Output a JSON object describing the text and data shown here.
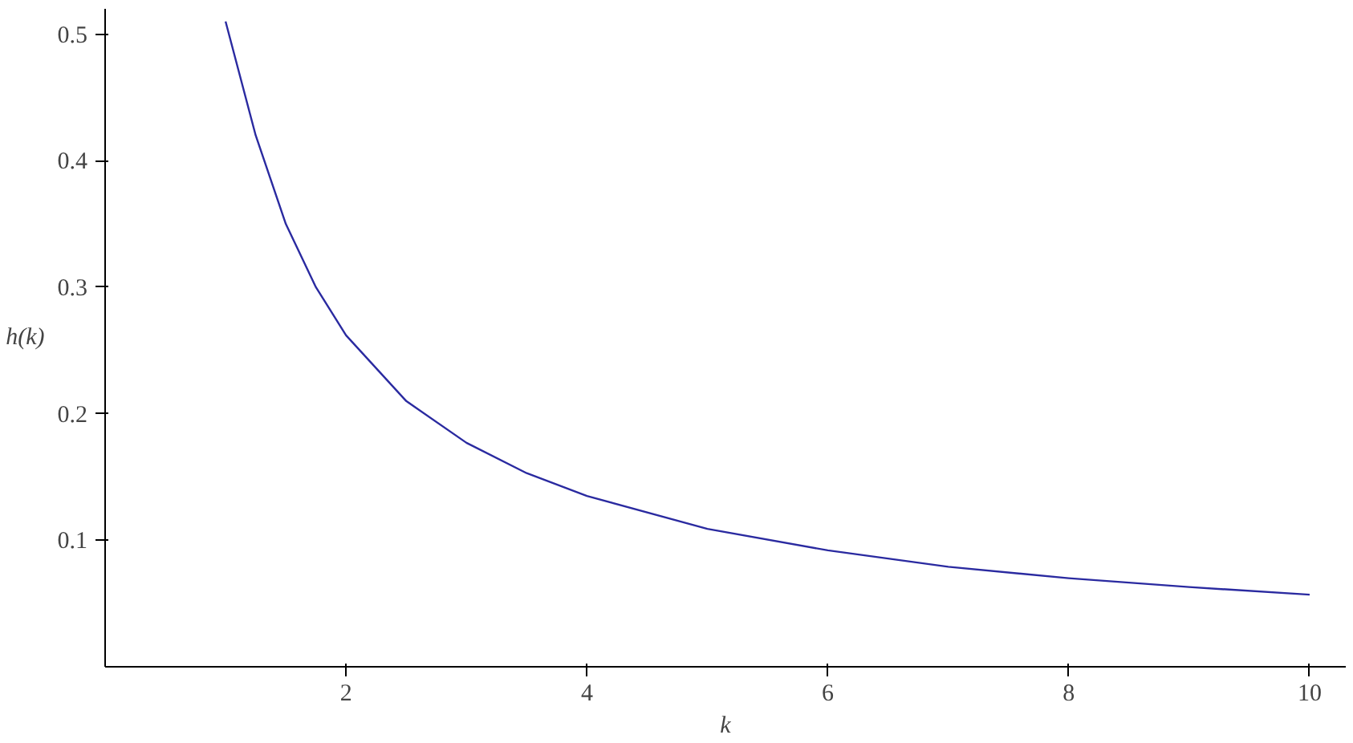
{
  "chart_data": {
    "type": "line",
    "xlabel": "k",
    "ylabel": "h(k)",
    "x": [
      1,
      1.25,
      1.5,
      1.75,
      2,
      2.5,
      3,
      3.5,
      4,
      5,
      6,
      7,
      8,
      9,
      10
    ],
    "series": [
      {
        "color": "#2a2aa0",
        "values": [
          0.51,
          0.42,
          0.35,
          0.3,
          0.262,
          0.21,
          0.177,
          0.153,
          0.135,
          0.109,
          0.092,
          0.079,
          0.07,
          0.063,
          0.057
        ]
      }
    ],
    "xlim": [
      0,
      10.3
    ],
    "ylim": [
      0,
      0.52
    ],
    "xticks": [
      2,
      4,
      6,
      8,
      10
    ],
    "yticks": [
      0.1,
      0.2,
      0.3,
      0.4,
      0.5
    ],
    "grid": false,
    "marker": "none",
    "line_style": "solid"
  }
}
